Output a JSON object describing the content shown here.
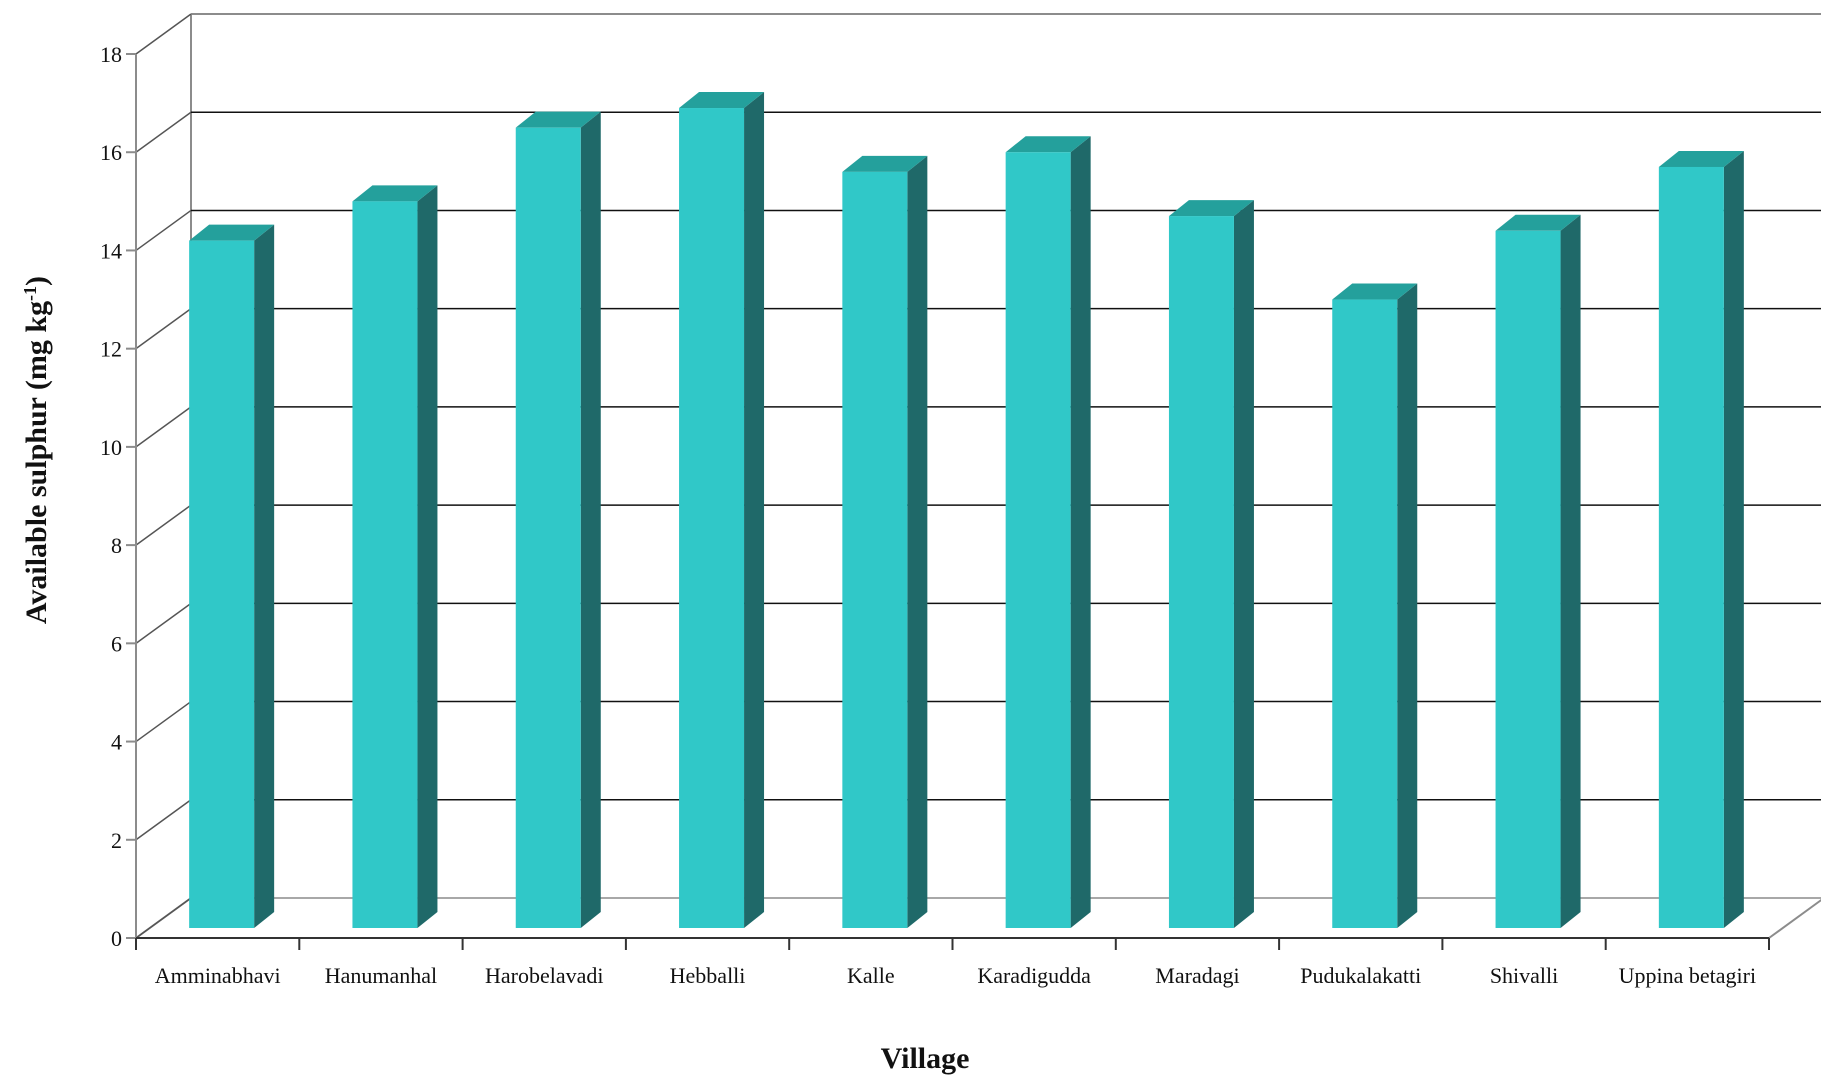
{
  "chart_data": {
    "type": "bar",
    "title": "",
    "xlabel": "Village",
    "ylabel": "Available sulphur (mg kg",
    "ylabel_sup": "-1",
    "ylabel_close": ")",
    "categories": [
      "Amminabhavi",
      "Hanumanhal",
      "Harobelavadi",
      "Hebballi",
      "Kalle",
      "Karadigudda",
      "Maradagi",
      "Pudukalakatti",
      "Shivalli",
      "Uppina betagiri"
    ],
    "values": [
      14.2,
      15.0,
      16.5,
      16.9,
      15.6,
      16.0,
      14.7,
      13.0,
      14.4,
      15.7
    ],
    "ylim": [
      0,
      18
    ],
    "yticks": [
      "0",
      "2",
      "4",
      "6",
      "8",
      "10",
      "12",
      "14",
      "16",
      "18"
    ],
    "grid": true,
    "legend": "none",
    "style": "3d",
    "colors": {
      "front": "#30c8c8",
      "side": "#1f6969",
      "top": "#24a09c",
      "grid": "#111111",
      "wall": "#8c8c8c"
    }
  }
}
